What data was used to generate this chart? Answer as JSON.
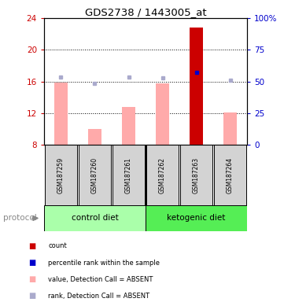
{
  "title": "GDS2738 / 1443005_at",
  "samples": [
    "GSM187259",
    "GSM187260",
    "GSM187261",
    "GSM187262",
    "GSM187263",
    "GSM187264"
  ],
  "ylim_left": [
    8,
    24
  ],
  "ylim_right": [
    0,
    100
  ],
  "yticks_left": [
    8,
    12,
    16,
    20,
    24
  ],
  "yticks_right": [
    0,
    25,
    50,
    75,
    100
  ],
  "value_bars": [
    15.9,
    10.0,
    12.8,
    15.8,
    22.8,
    12.1
  ],
  "value_bar_is_present": [
    false,
    false,
    false,
    false,
    true,
    false
  ],
  "rank_dots_left": [
    16.6,
    15.8,
    16.6,
    16.5,
    17.2,
    16.2
  ],
  "rank_dot_is_present": [
    false,
    false,
    false,
    false,
    true,
    false
  ],
  "bar_bottom": 8,
  "color_bar_absent": "#ffaaaa",
  "color_bar_present": "#cc0000",
  "color_dot_absent": "#aaaacc",
  "color_dot_present": "#0000cc",
  "color_ctrl": "#aaffaa",
  "color_keto": "#55ee55",
  "legend_items": [
    {
      "color": "#cc0000",
      "label": "count"
    },
    {
      "color": "#0000cc",
      "label": "percentile rank within the sample"
    },
    {
      "color": "#ffaaaa",
      "label": "value, Detection Call = ABSENT"
    },
    {
      "color": "#aaaacc",
      "label": "rank, Detection Call = ABSENT"
    }
  ],
  "left_axis_color": "#cc0000",
  "right_axis_color": "#0000cc",
  "background_color": "#ffffff"
}
